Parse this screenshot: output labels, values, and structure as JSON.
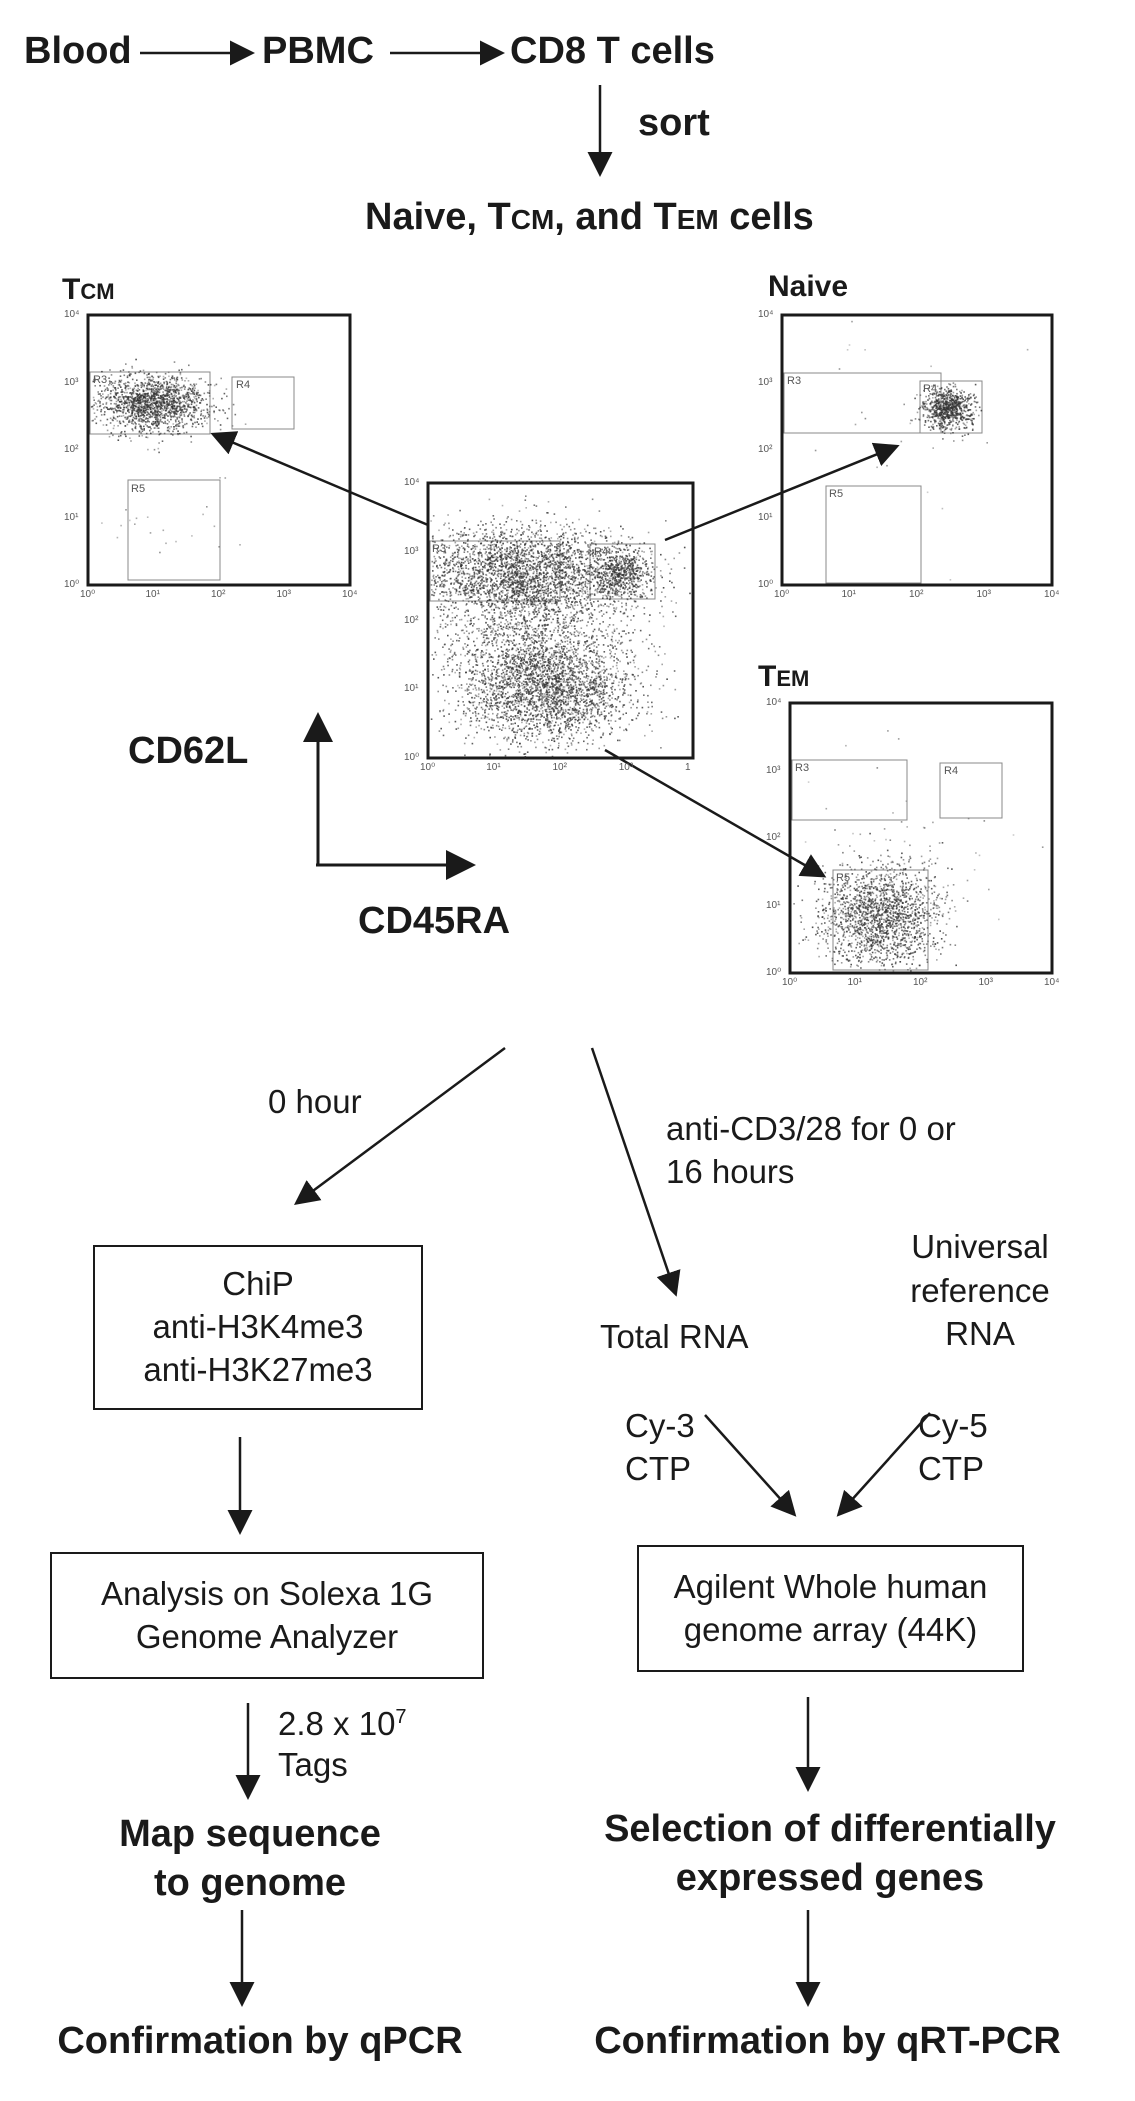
{
  "pipeline_top": {
    "step1": "Blood",
    "step2": "PBMC",
    "step3": "CD8 T cells",
    "sort_label": "sort",
    "sorted": {
      "pre": "Naive, T",
      "cm": "CM",
      "mid": ", and T",
      "em": "EM",
      "post": " cells"
    }
  },
  "panels": {
    "tcm_title": {
      "t": "T",
      "sub": "CM"
    },
    "naive_title": "Naive",
    "tem_title": {
      "t": "T",
      "sub": "EM"
    },
    "gates": [
      "R3",
      "R4",
      "R5"
    ],
    "ticks": [
      "10⁰",
      "10¹",
      "10²",
      "10³",
      "10⁴"
    ],
    "center_tick_last": "1"
  },
  "axes": {
    "y_label": "CD62L",
    "x_label": "CD45RA"
  },
  "left_branch": {
    "time_label": "0 hour",
    "chip_lines": [
      "ChiP",
      "anti-H3K4me3",
      "anti-H3K27me3"
    ],
    "analysis_lines": [
      "Analysis on Solexa 1G",
      "Genome Analyzer"
    ],
    "tags_line1": "2.8 x 10",
    "tags_exp": "7",
    "tags_line2": "Tags",
    "map_lines": [
      "Map sequence",
      "to genome"
    ],
    "confirm": "Confirmation by qPCR"
  },
  "right_branch": {
    "stim_lines": [
      "anti-CD3/28 for 0 or",
      "16 hours"
    ],
    "total_rna": "Total RNA",
    "universal_lines": [
      "Universal",
      "reference",
      "RNA"
    ],
    "cy3_lines": [
      "Cy-3",
      "CTP"
    ],
    "cy5_lines": [
      "Cy-5",
      "CTP"
    ],
    "array_lines": [
      "Agilent Whole human",
      "genome array (44K)"
    ],
    "selection_lines": [
      "Selection of differentially",
      "expressed genes"
    ],
    "confirm": "Confirmation by qRT-PCR"
  }
}
